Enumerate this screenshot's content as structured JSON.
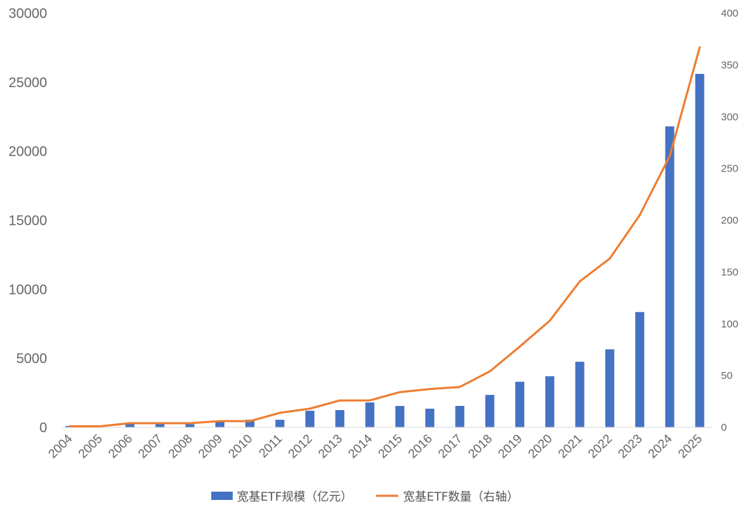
{
  "chart_data": {
    "type": "bar",
    "categories": [
      "2004",
      "2005",
      "2006",
      "2007",
      "2008",
      "2009",
      "2010",
      "2011",
      "2012",
      "2013",
      "2014",
      "2015",
      "2016",
      "2017",
      "2018",
      "2019",
      "2020",
      "2021",
      "2022",
      "2023",
      "2024",
      "2025"
    ],
    "series": [
      {
        "name": "宽基ETF规模（亿元）",
        "type": "bar",
        "axis": "left",
        "color": "#4472C4",
        "values": [
          100,
          30,
          250,
          280,
          230,
          450,
          550,
          550,
          1200,
          1250,
          1800,
          1550,
          1350,
          1550,
          2350,
          3300,
          3700,
          4750,
          5650,
          8350,
          21800,
          25600
        ]
      },
      {
        "name": "宽基ETF数量（右轴）",
        "type": "line",
        "axis": "right",
        "color": "#ED7D31",
        "values": [
          1,
          1,
          4,
          4,
          4,
          6,
          6,
          14,
          18,
          26,
          26,
          34,
          37,
          39,
          54,
          78,
          103,
          141,
          163,
          205,
          262,
          367
        ]
      }
    ],
    "y_left": {
      "ylim": [
        0,
        30000
      ],
      "ticks": [
        "0",
        "5000",
        "10000",
        "15000",
        "20000",
        "25000",
        "30000"
      ]
    },
    "y_right": {
      "ylim": [
        0,
        400
      ],
      "ticks": [
        "0",
        "50",
        "100",
        "150",
        "200",
        "250",
        "300",
        "350",
        "400"
      ]
    },
    "grid": false,
    "legend_position": "bottom"
  }
}
